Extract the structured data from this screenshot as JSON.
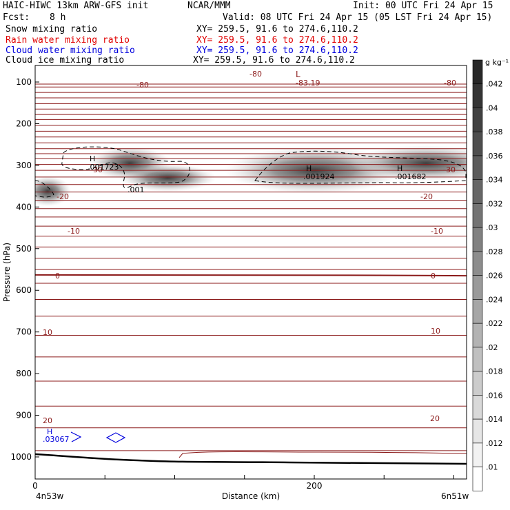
{
  "header": {
    "model": "HAIC-HIWC 13km ARW-GFS init",
    "org": "NCAR/MMM",
    "init": "Init: 00 UTC Fri 24 Apr 15",
    "fcst_label": "Fcst:",
    "fcst_value": "8 h",
    "valid": "Valid: 08 UTC Fri 24 Apr 15 (05 LST Fri 24 Apr 15)"
  },
  "fields": [
    {
      "name": "Snow mixing ratio",
      "xy": "XY= 259.5, 91.6 to 274.6,110.2",
      "color": "#000000"
    },
    {
      "name": "Rain water mixing ratio",
      "xy": "XY= 259.5, 91.6 to 274.6,110.2",
      "color": "#e00000"
    },
    {
      "name": "Cloud water mixing ratio",
      "xy": "XY= 259.5, 91.6 to 274.6,110.2",
      "color": "#0000dd"
    },
    {
      "name": "Cloud ice mixing ratio",
      "xy": "XY= 259.5, 91.6 to 274.6,110.2",
      "color": "#000000"
    }
  ],
  "colorbar": {
    "unit": "g kg⁻¹",
    "labels": [
      ".042",
      ".04",
      ".038",
      ".036",
      ".034",
      ".032",
      ".03",
      ".028",
      ".026",
      ".024",
      ".022",
      ".02",
      ".018",
      ".016",
      ".014",
      ".012",
      ".01"
    ]
  },
  "chart_data": {
    "type": "heatmap",
    "description_type": "vertical cross-section",
    "xlabel": "Distance (km)",
    "ylabel": "Pressure (hPa)",
    "x_ticks": [
      "0",
      "200"
    ],
    "x_end_labels": {
      "left": "4n53w",
      "right": "6n51w"
    },
    "y_ticks": [
      100,
      200,
      300,
      400,
      500,
      600,
      700,
      800,
      900,
      1000
    ],
    "xlim": [
      0,
      300
    ],
    "ylim": [
      1050,
      50
    ],
    "temperature_contours": {
      "color": "#8b1a1a",
      "labeled_levels": [
        -80,
        -30,
        -20,
        -10,
        0,
        10,
        20
      ],
      "minimum": {
        "label": "L",
        "value": "-83.19",
        "x_km": 190,
        "p_hpa": 108
      }
    },
    "cloud_ice_maxima": [
      {
        "label": "H",
        "value": ".001723",
        "x_km": 41,
        "p_hpa": 287
      },
      {
        "label": "H",
        "value": ".001924",
        "x_km": 196,
        "p_hpa": 300
      },
      {
        "label": "H",
        "value": ".001682",
        "x_km": 262,
        "p_hpa": 300
      }
    ],
    "cloud_ice_contour_label": ".001",
    "cloud_water_maximum": {
      "label": "H",
      "value": ".03067",
      "x_km": 9,
      "p_hpa": 950
    },
    "snow_shading_cores": [
      {
        "x_km": 9,
        "p_hpa": 362
      },
      {
        "x_km": 68,
        "p_hpa": 295
      },
      {
        "x_km": 95,
        "p_hpa": 330
      },
      {
        "x_km": 200,
        "p_hpa": 312
      },
      {
        "x_km": 280,
        "p_hpa": 295
      }
    ]
  },
  "contour_labels": {
    "m80a": "-80",
    "m80b": "-80",
    "m80c": "-80",
    "m30a": "-30",
    "m30b": "-30",
    "m20a": "-20",
    "m20b": "-20",
    "m10a": "-10",
    "m10b": "-10",
    "z0a": "0",
    "z0b": "0",
    "p10a": "10",
    "p10b": "10",
    "p20a": "20",
    "p20b": "20"
  }
}
